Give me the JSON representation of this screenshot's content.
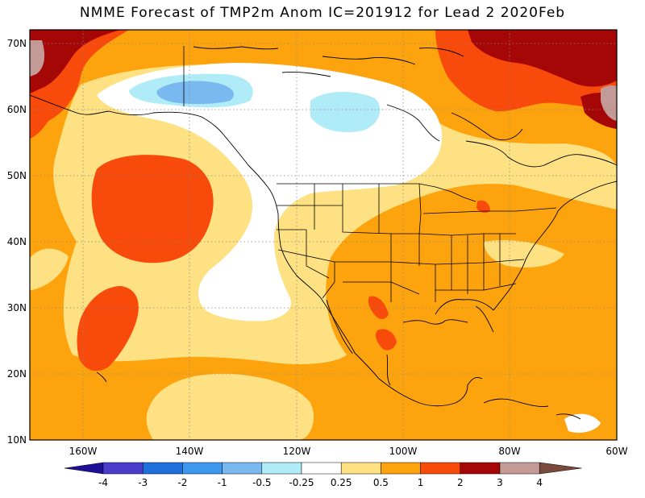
{
  "title": "NMME Forecast of TMP2m Anom IC=201912 for Lead 2 2020Feb",
  "map": {
    "lat_labels": [
      "70N",
      "60N",
      "50N",
      "40N",
      "30N",
      "20N",
      "10N"
    ],
    "lon_labels": [
      "160W",
      "140W",
      "120W",
      "100W",
      "80W",
      "60W"
    ],
    "lat_range": [
      10,
      72
    ],
    "lon_range": [
      -171,
      -60
    ]
  },
  "colorbar": {
    "levels": [
      "-4",
      "-3",
      "-2",
      "-1",
      "-0.5",
      "-0.25",
      "0.25",
      "0.5",
      "1",
      "2",
      "3",
      "4"
    ],
    "colors": [
      "#1e0f99",
      "#4b3ccc",
      "#1f6fdc",
      "#3c99ef",
      "#7ab8f0",
      "#b0ecf7",
      "#ffffff",
      "#fde182",
      "#fda30e",
      "#f84a0a",
      "#a50606",
      "#c49a96",
      "#7a4b3d"
    ]
  }
}
